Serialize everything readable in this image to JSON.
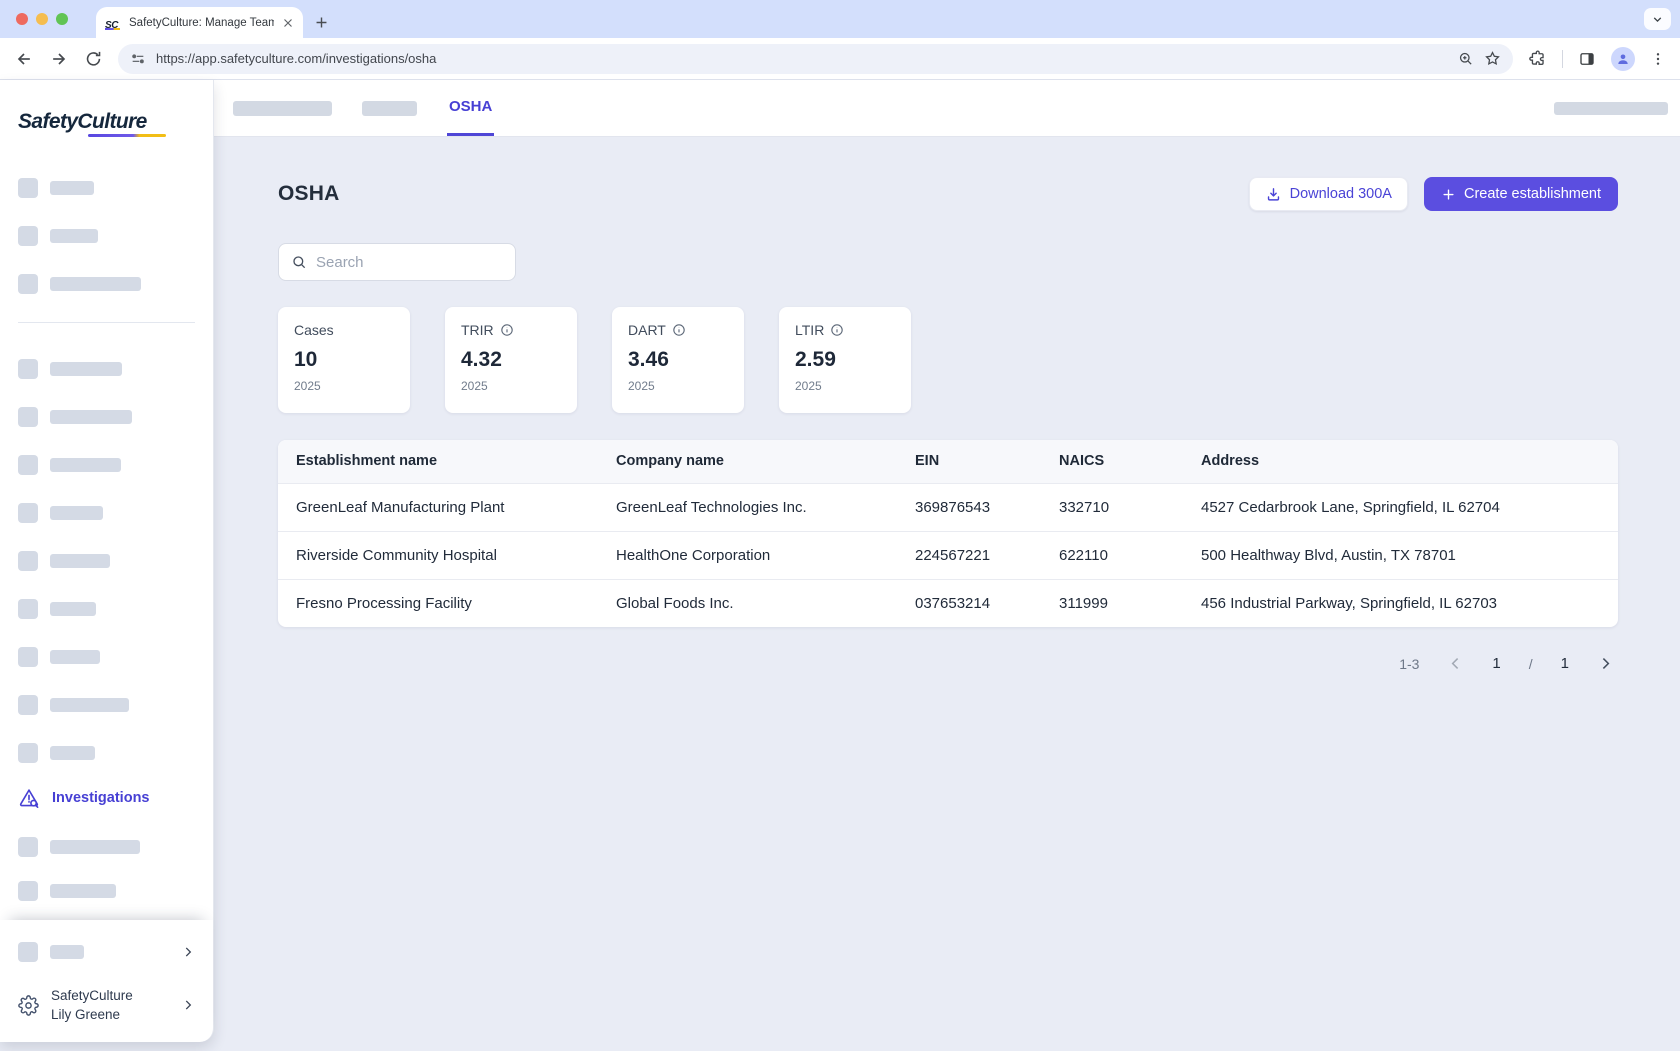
{
  "browser": {
    "tab_title": "SafetyCulture: Manage Teams and...",
    "url": "https://app.safetyculture.com/investigations/osha"
  },
  "sidebar": {
    "logo": "SafetyCulture",
    "active_item": {
      "label": "Investigations"
    },
    "workspace": {
      "org": "SafetyCulture",
      "user": "Lily Greene"
    }
  },
  "header": {
    "active_tab": "OSHA"
  },
  "page": {
    "title": "OSHA",
    "download_button": "Download 300A",
    "create_button": "Create establishment",
    "search_placeholder": "Search"
  },
  "stats": [
    {
      "label": "Cases",
      "value": "10",
      "year": "2025",
      "info": false
    },
    {
      "label": "TRIR",
      "value": "4.32",
      "year": "2025",
      "info": true
    },
    {
      "label": "DART",
      "value": "3.46",
      "year": "2025",
      "info": true
    },
    {
      "label": "LTIR",
      "value": "2.59",
      "year": "2025",
      "info": true
    }
  ],
  "table": {
    "columns": [
      "Establishment name",
      "Company name",
      "EIN",
      "NAICS",
      "Address"
    ],
    "rows": [
      [
        "GreenLeaf Manufacturing Plant",
        "GreenLeaf Technologies Inc.",
        "369876543",
        "332710",
        "4527 Cedarbrook Lane, Springfield, IL 62704"
      ],
      [
        "Riverside Community Hospital",
        "HealthOne Corporation",
        "224567221",
        "622110",
        "500 Healthway Blvd, Austin, TX 78701"
      ],
      [
        "Fresno Processing Facility",
        "Global Foods Inc.",
        "037653214",
        "311999",
        "456 Industrial Parkway, Springfield, IL 62703"
      ]
    ]
  },
  "pagination": {
    "range": "1-3",
    "current": "1",
    "separator": "/",
    "total": "1"
  },
  "colors": {
    "accent": "#4740d4",
    "primary_button": "#5b4ee0",
    "content_bg": "#e9ecf5"
  }
}
